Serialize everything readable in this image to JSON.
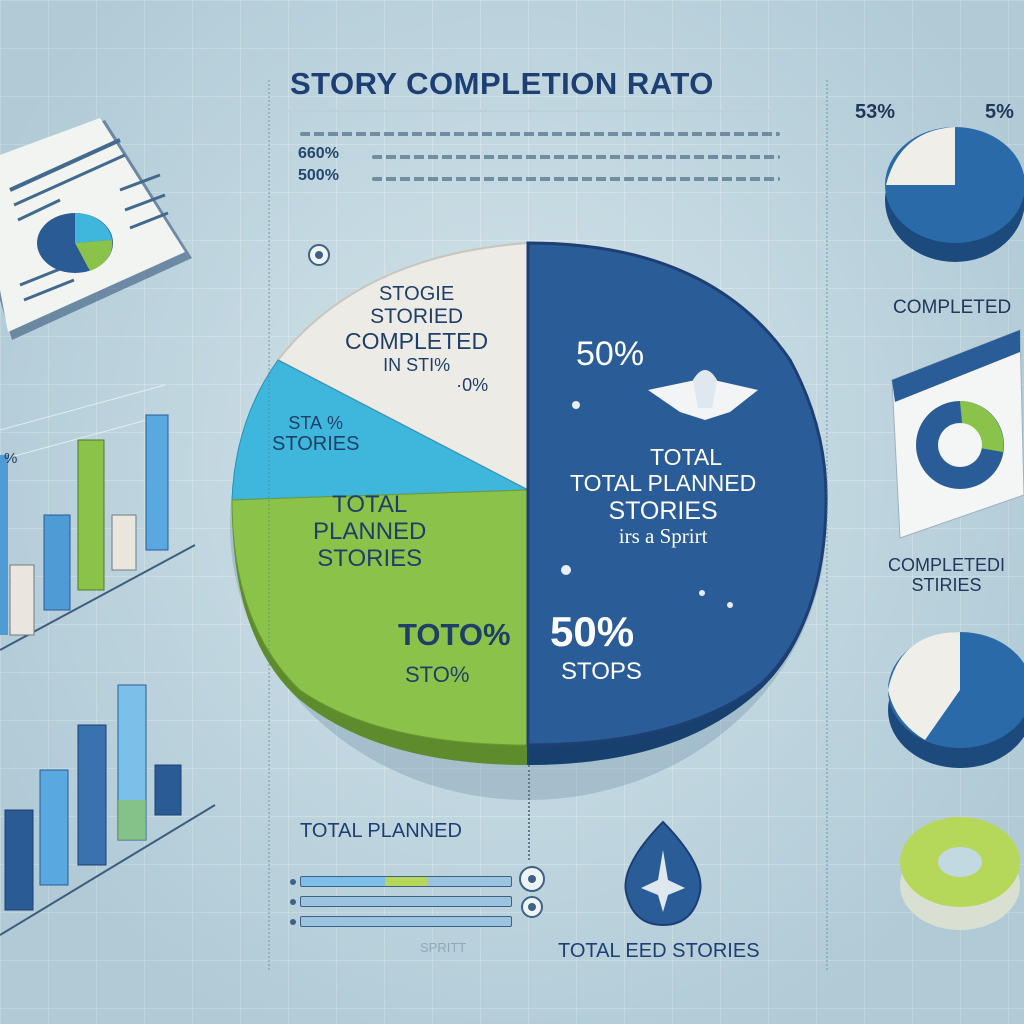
{
  "title": "STORY COMPLETION RATO",
  "legend": {
    "numbers": [
      "660%",
      "500%"
    ]
  },
  "pie": {
    "wedge_white": {
      "lines": [
        "STOGIE",
        "STORIED",
        "COMPLETED",
        "IN STI%",
        "·0%"
      ]
    },
    "wedge_cyan": {
      "lines": [
        "STA %",
        "STORIES"
      ]
    },
    "wedge_green": {
      "lines": [
        "TOTAL",
        "PLANNED",
        "STORIES",
        "TOTO%",
        "STO%"
      ]
    },
    "wedge_blue": {
      "top_percent": "50%",
      "mid_lines": [
        "TOTAL",
        "TOTAL PLANNED",
        "STORIES",
        "irs a Sprirt"
      ],
      "bottom_percent": "50%",
      "bottom_label": "STOPS"
    }
  },
  "right_panel": {
    "pct_left": "53%",
    "pct_right": "5%",
    "completed_label": "COMPLETED",
    "completed_stories_lines": [
      "COMPLETEDI",
      "STIRIES"
    ]
  },
  "bottom": {
    "total_planned": "TOTAL PLANNED",
    "sprint_label": "SPRITT",
    "total_stories": "TOTAL EED STORIES"
  },
  "left_chart_labels": {
    "pct": "%"
  },
  "colors": {
    "navy": "#1d3f73",
    "blue": "#2a5d97",
    "cyan": "#3fb7dd",
    "green": "#8bc34a",
    "cream": "#ecebe6",
    "background": "#c3d9e2"
  }
}
